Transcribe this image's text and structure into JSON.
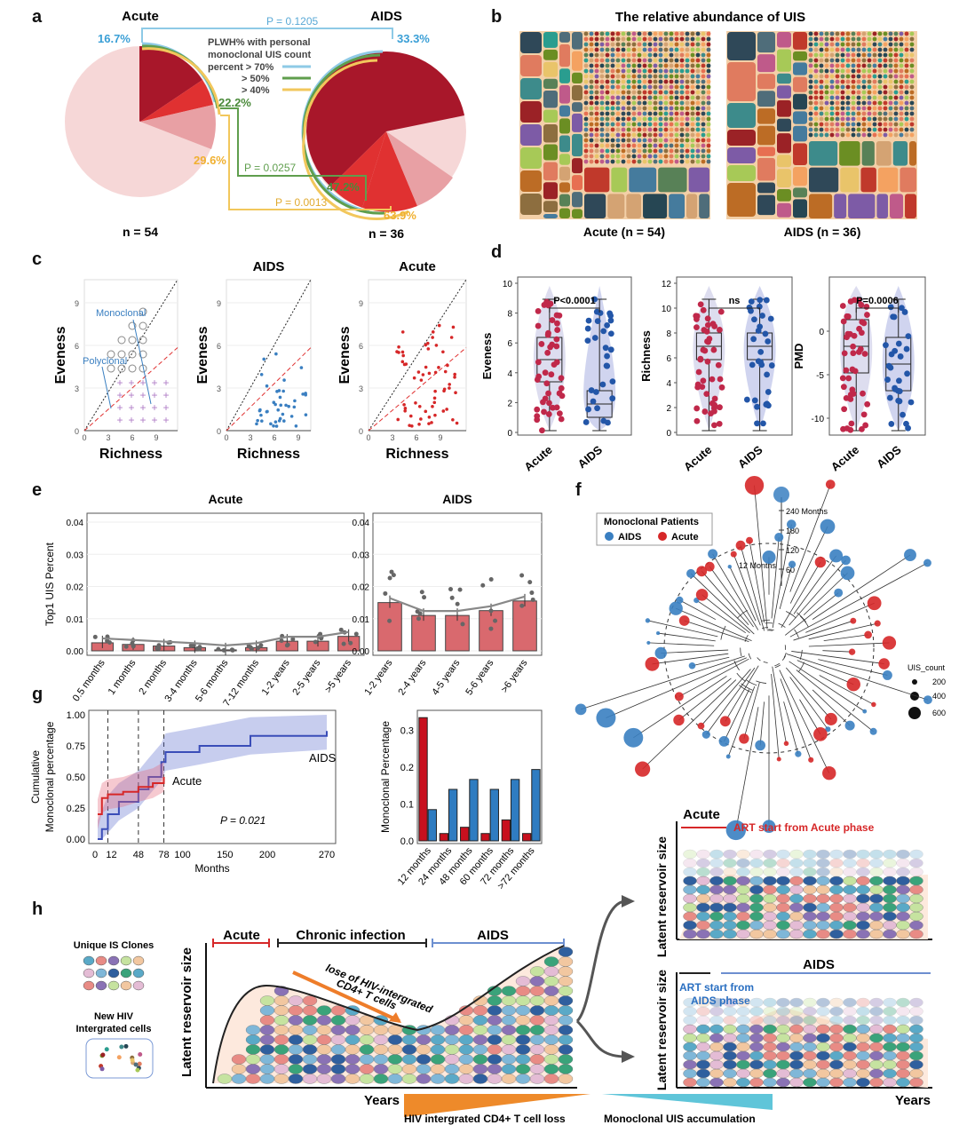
{
  "panel_letters": {
    "a": "a",
    "b": "b",
    "c": "c",
    "d": "d",
    "e": "e",
    "f": "f",
    "g": "g",
    "h": "h"
  },
  "panel_a": {
    "acute_title": "Acute",
    "aids_title": "AIDS",
    "acute_n": "n = 54",
    "aids_n": "n = 36",
    "legend_line1": "PLWH% with personal",
    "legend_line2": "monoclonal UIS count",
    "legend_items": [
      "percent > 70%",
      "> 50%",
      "> 40%"
    ],
    "acute_pcts": [
      "16.7%",
      "22.2%",
      "29.6%"
    ],
    "aids_pcts": [
      "33.3%",
      "47.2%",
      "63.9%"
    ],
    "pvalues": [
      "P = 0.1205",
      "P = 0.0257",
      "P = 0.0013"
    ],
    "colors": {
      "blue": "#8ecae6",
      "green": "#5f9e4d",
      "yellow": "#f2c75c",
      "dark": "#a8172a",
      "mid": "#e03131",
      "light": "#e8a0a4",
      "pale": "#f6d7d7"
    }
  },
  "panel_b": {
    "title": "The relative abundance of UIS",
    "acute_label": "Acute (n = 54)",
    "aids_label": "AIDS (n = 36)"
  },
  "panel_c": {
    "ylabel": "Eveness",
    "xlabel": "Richness",
    "titles": [
      "",
      "AIDS",
      "Acute"
    ],
    "yticks": [
      "0",
      "3",
      "6",
      "9"
    ],
    "xticks": [
      "0",
      "3",
      "6",
      "9"
    ],
    "monoclonal": "Monoclonal",
    "polyclonal": "Polyclonal"
  },
  "panel_d": {
    "plots": [
      {
        "ylabel": "Eveness",
        "yticks": [
          "0",
          "2",
          "4",
          "6",
          "8",
          "10"
        ],
        "pvalue": "P<0.0001",
        "x": [
          "Acute",
          "AIDS"
        ]
      },
      {
        "ylabel": "Richness",
        "yticks": [
          "0",
          "2",
          "4",
          "6",
          "8",
          "10",
          "12"
        ],
        "pvalue": "ns",
        "x": [
          "Acute",
          "AIDS"
        ]
      },
      {
        "ylabel": "PMD",
        "yticks": [
          "0",
          "-5",
          "-10"
        ],
        "pvalue": "P=0.0006",
        "x": [
          "Acute",
          "AIDS"
        ]
      }
    ]
  },
  "panel_e": {
    "acute_title": "Acute",
    "aids_title": "AIDS",
    "ylabel": "Top1 UIS Percent",
    "yticks": [
      "0.00",
      "0.01",
      "0.02",
      "0.03",
      "0.04"
    ],
    "acute_cats": [
      "0.5 months",
      "1 months",
      "2 months",
      "3-4 months",
      "5-6 months",
      "7-12 months",
      "1-2 years",
      "2-5 years",
      ">5 years"
    ],
    "acute_vals": [
      0.0025,
      0.002,
      0.0015,
      0.001,
      0.0003,
      0.001,
      0.003,
      0.003,
      0.0045
    ],
    "aids_cats": [
      "1-2 years",
      "2-4 years",
      "4-5 years",
      "5-6 years",
      ">6 years"
    ],
    "aids_vals": [
      0.015,
      0.011,
      0.011,
      0.0125,
      0.0155
    ]
  },
  "panel_f": {
    "legend_title": "Monoclonal Patients",
    "legend_aids": "AIDS",
    "legend_acute": "Acute",
    "scale": [
      "240 Months",
      "180",
      "120",
      "60"
    ],
    "mark12": "12 Months",
    "size_title": "UIS_count",
    "sizes": [
      "200",
      "400",
      "600"
    ],
    "colors": {
      "aids": "#3a7fc1",
      "acute": "#d62728"
    }
  },
  "panel_g": {
    "ylabel1": "Cumulative",
    "ylabel2": "Monoclonal percentage",
    "yticks": [
      "0.00",
      "0.25",
      "0.50",
      "0.75",
      "1.00"
    ],
    "xticks": [
      "0",
      "12",
      "48",
      "78",
      "100",
      "150",
      "200",
      "270"
    ],
    "xlabel": "Months",
    "pvalue": "P = 0.021",
    "aids_label": "AIDS",
    "acute_label": "Acute",
    "bar_ylabel": "Monoclonal Percentage",
    "bar_yticks": [
      "0.0",
      "0.1",
      "0.2",
      "0.3"
    ],
    "bar_cats": [
      "12 months",
      "24 months",
      "48 months",
      "60 months",
      "72 months",
      ">72 months"
    ],
    "chart_data": {
      "type": "bar",
      "categories": [
        "12 months",
        "24 months",
        "48 months",
        "60 months",
        "72 months",
        ">72 months"
      ],
      "series": [
        {
          "name": "Acute",
          "values": [
            0.335,
            0.02,
            0.037,
            0.02,
            0.057,
            0.02
          ]
        },
        {
          "name": "AIDS",
          "values": [
            0.085,
            0.14,
            0.167,
            0.14,
            0.167,
            0.194
          ]
        }
      ],
      "ylim": [
        0,
        0.35
      ]
    }
  },
  "panel_h": {
    "acute": "Acute",
    "chronic": "Chronic infection",
    "aids": "AIDS",
    "unique_is": "Unique IS Clones",
    "new_hiv1": "New HIV",
    "new_hiv2": "Intergrated cells",
    "lose1": "lose of HIV-intergrated",
    "lose2": "CD4+ T cells",
    "ylabel": "Latent reservoir size",
    "years": "Years",
    "loss_label": "HIV intergrated CD4+ T cell loss",
    "accum_label": "Monoclonal UIS accumulation",
    "art_acute": "ART start from Acute phase",
    "art_aids1": "ART start from",
    "art_aids2": "AIDS phase"
  }
}
